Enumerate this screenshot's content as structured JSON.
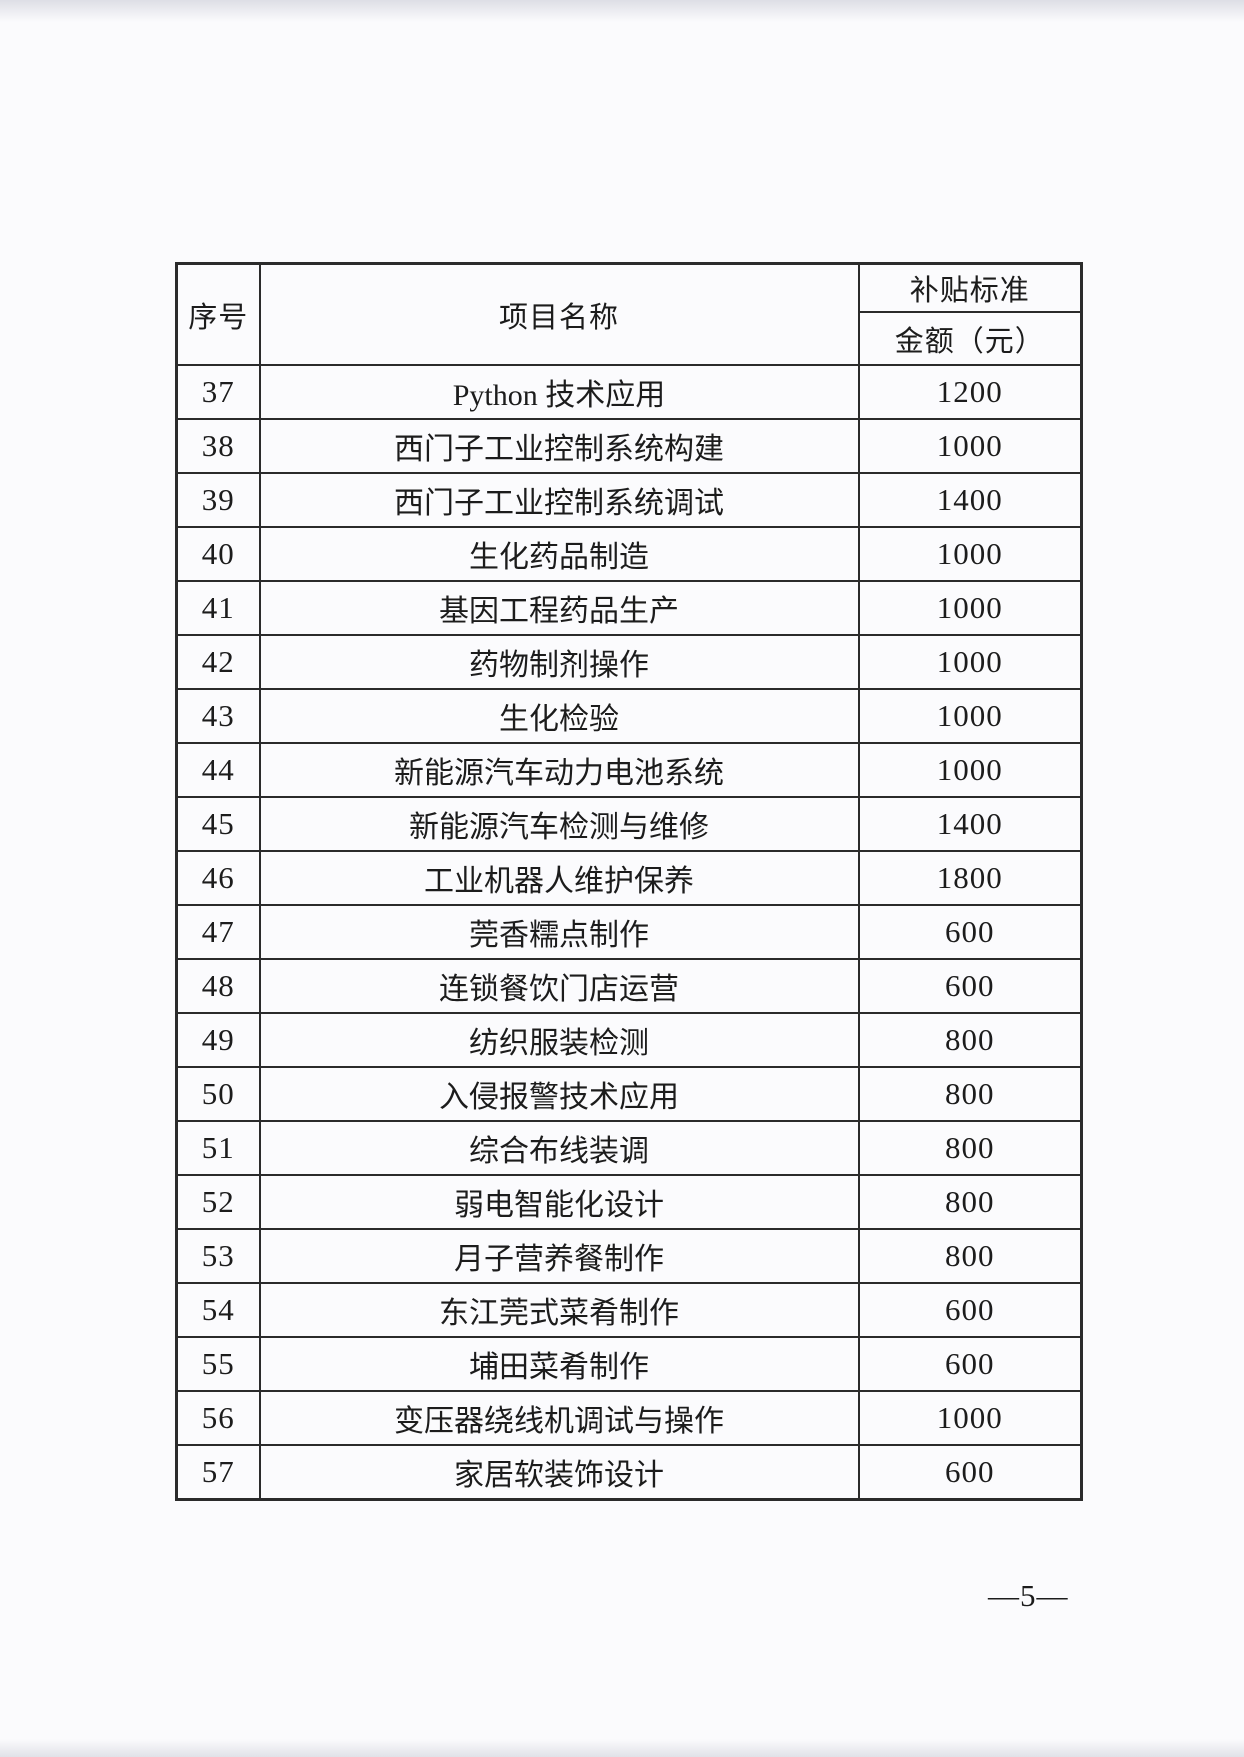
{
  "page": {
    "number_label": "—5—",
    "colors": {
      "background": "#fbfbfd",
      "table_border": "#2b2b2b",
      "text": "#1c1c1c"
    }
  },
  "table": {
    "headers": {
      "serial": "序号",
      "project_name": "项目名称",
      "subsidy_standard": "补贴标准",
      "amount_yuan": "金额（元）"
    },
    "rows": [
      {
        "index": "37",
        "name": "Python 技术应用",
        "amount": "1200"
      },
      {
        "index": "38",
        "name": "西门子工业控制系统构建",
        "amount": "1000"
      },
      {
        "index": "39",
        "name": "西门子工业控制系统调试",
        "amount": "1400"
      },
      {
        "index": "40",
        "name": "生化药品制造",
        "amount": "1000"
      },
      {
        "index": "41",
        "name": "基因工程药品生产",
        "amount": "1000"
      },
      {
        "index": "42",
        "name": "药物制剂操作",
        "amount": "1000"
      },
      {
        "index": "43",
        "name": "生化检验",
        "amount": "1000"
      },
      {
        "index": "44",
        "name": "新能源汽车动力电池系统",
        "amount": "1000"
      },
      {
        "index": "45",
        "name": "新能源汽车检测与维修",
        "amount": "1400"
      },
      {
        "index": "46",
        "name": "工业机器人维护保养",
        "amount": "1800"
      },
      {
        "index": "47",
        "name": "莞香糯点制作",
        "amount": "600"
      },
      {
        "index": "48",
        "name": "连锁餐饮门店运营",
        "amount": "600"
      },
      {
        "index": "49",
        "name": "纺织服装检测",
        "amount": "800"
      },
      {
        "index": "50",
        "name": "入侵报警技术应用",
        "amount": "800"
      },
      {
        "index": "51",
        "name": "综合布线装调",
        "amount": "800"
      },
      {
        "index": "52",
        "name": "弱电智能化设计",
        "amount": "800"
      },
      {
        "index": "53",
        "name": "月子营养餐制作",
        "amount": "800"
      },
      {
        "index": "54",
        "name": "东江莞式菜肴制作",
        "amount": "600"
      },
      {
        "index": "55",
        "name": "埔田菜肴制作",
        "amount": "600"
      },
      {
        "index": "56",
        "name": "变压器绕线机调试与操作",
        "amount": "1000"
      },
      {
        "index": "57",
        "name": "家居软装饰设计",
        "amount": "600"
      }
    ]
  }
}
